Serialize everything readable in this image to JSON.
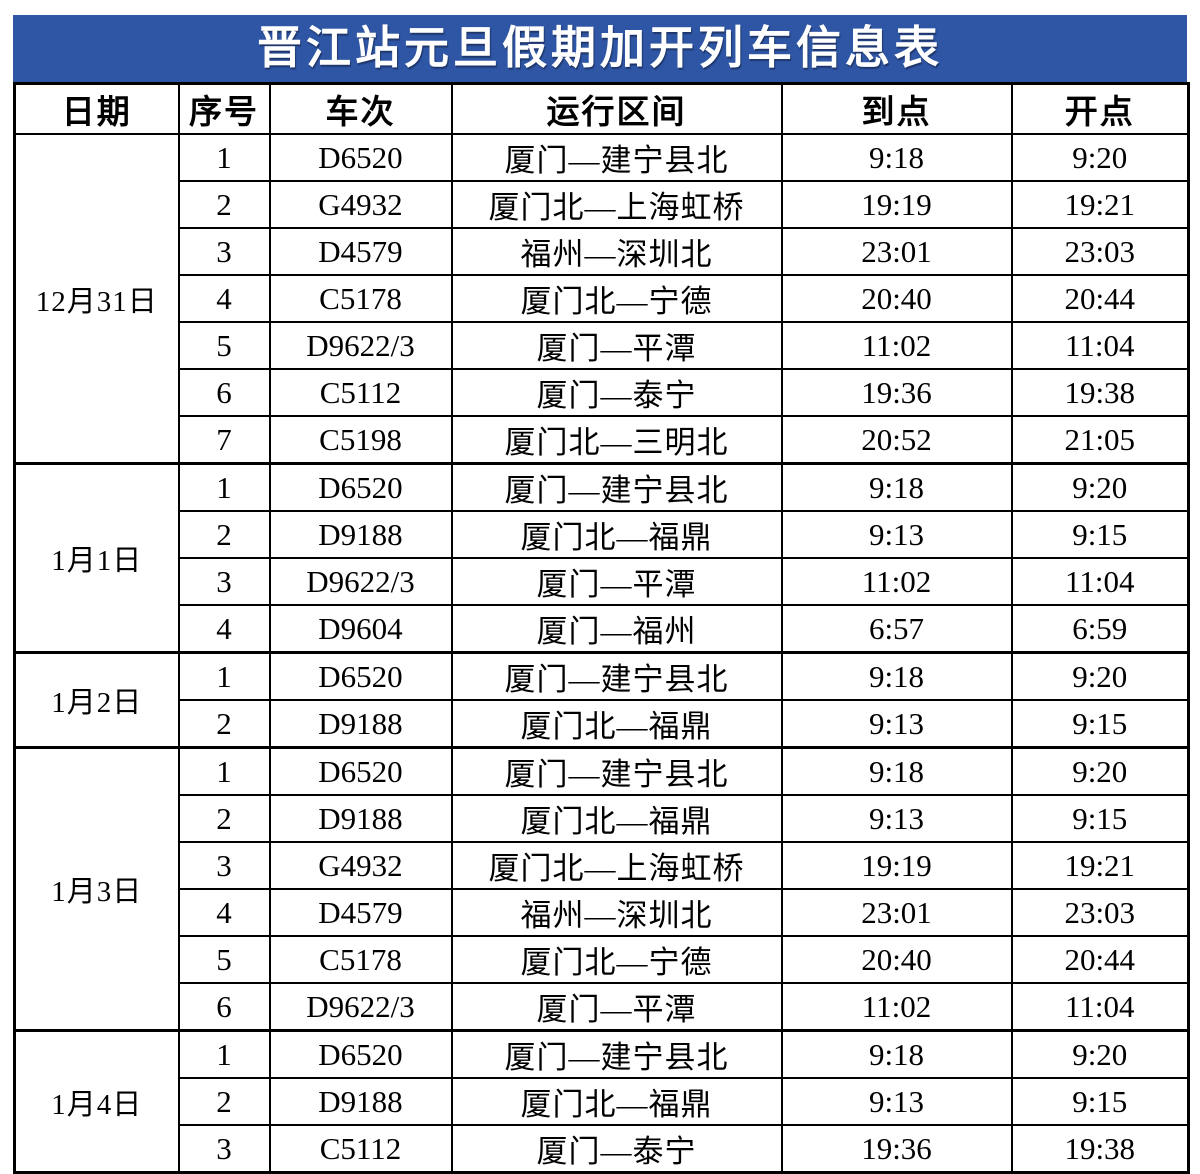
{
  "title": "晋江站元旦假期加开列车信息表",
  "colors": {
    "title_background": "#2e56a5",
    "title_text": "#ffffff",
    "table_border": "#000000",
    "body_text": "#000000",
    "page_background": "#ffffff"
  },
  "columns": [
    "日期",
    "序号",
    "车次",
    "运行区间",
    "到点",
    "开点"
  ],
  "sections": [
    {
      "date": "12月31日",
      "rows": [
        {
          "seq": "1",
          "train": "D6520",
          "route": "厦门—建宁县北",
          "arrive": "9:18",
          "depart": "9:20"
        },
        {
          "seq": "2",
          "train": "G4932",
          "route": "厦门北—上海虹桥",
          "arrive": "19:19",
          "depart": "19:21"
        },
        {
          "seq": "3",
          "train": "D4579",
          "route": "福州—深圳北",
          "arrive": "23:01",
          "depart": "23:03"
        },
        {
          "seq": "4",
          "train": "C5178",
          "route": "厦门北—宁德",
          "arrive": "20:40",
          "depart": "20:44"
        },
        {
          "seq": "5",
          "train": "D9622/3",
          "route": "厦门—平潭",
          "arrive": "11:02",
          "depart": "11:04"
        },
        {
          "seq": "6",
          "train": "C5112",
          "route": "厦门—泰宁",
          "arrive": "19:36",
          "depart": "19:38"
        },
        {
          "seq": "7",
          "train": "C5198",
          "route": "厦门北—三明北",
          "arrive": "20:52",
          "depart": "21:05"
        }
      ]
    },
    {
      "date": "1月1日",
      "rows": [
        {
          "seq": "1",
          "train": "D6520",
          "route": "厦门—建宁县北",
          "arrive": "9:18",
          "depart": "9:20"
        },
        {
          "seq": "2",
          "train": "D9188",
          "route": "厦门北—福鼎",
          "arrive": "9:13",
          "depart": "9:15"
        },
        {
          "seq": "3",
          "train": "D9622/3",
          "route": "厦门—平潭",
          "arrive": "11:02",
          "depart": "11:04"
        },
        {
          "seq": "4",
          "train": "D9604",
          "route": "厦门—福州",
          "arrive": "6:57",
          "depart": "6:59"
        }
      ]
    },
    {
      "date": "1月2日",
      "rows": [
        {
          "seq": "1",
          "train": "D6520",
          "route": "厦门—建宁县北",
          "arrive": "9:18",
          "depart": "9:20"
        },
        {
          "seq": "2",
          "train": "D9188",
          "route": "厦门北—福鼎",
          "arrive": "9:13",
          "depart": "9:15"
        }
      ]
    },
    {
      "date": "1月3日",
      "rows": [
        {
          "seq": "1",
          "train": "D6520",
          "route": "厦门—建宁县北",
          "arrive": "9:18",
          "depart": "9:20"
        },
        {
          "seq": "2",
          "train": "D9188",
          "route": "厦门北—福鼎",
          "arrive": "9:13",
          "depart": "9:15"
        },
        {
          "seq": "3",
          "train": "G4932",
          "route": "厦门北—上海虹桥",
          "arrive": "19:19",
          "depart": "19:21"
        },
        {
          "seq": "4",
          "train": "D4579",
          "route": "福州—深圳北",
          "arrive": "23:01",
          "depart": "23:03"
        },
        {
          "seq": "5",
          "train": "C5178",
          "route": "厦门北—宁德",
          "arrive": "20:40",
          "depart": "20:44"
        },
        {
          "seq": "6",
          "train": "D9622/3",
          "route": "厦门—平潭",
          "arrive": "11:02",
          "depart": "11:04"
        }
      ]
    },
    {
      "date": "1月4日",
      "rows": [
        {
          "seq": "1",
          "train": "D6520",
          "route": "厦门—建宁县北",
          "arrive": "9:18",
          "depart": "9:20"
        },
        {
          "seq": "2",
          "train": "D9188",
          "route": "厦门北—福鼎",
          "arrive": "9:13",
          "depart": "9:15"
        },
        {
          "seq": "3",
          "train": "C5112",
          "route": "厦门—泰宁",
          "arrive": "19:36",
          "depart": "19:38"
        }
      ]
    }
  ]
}
